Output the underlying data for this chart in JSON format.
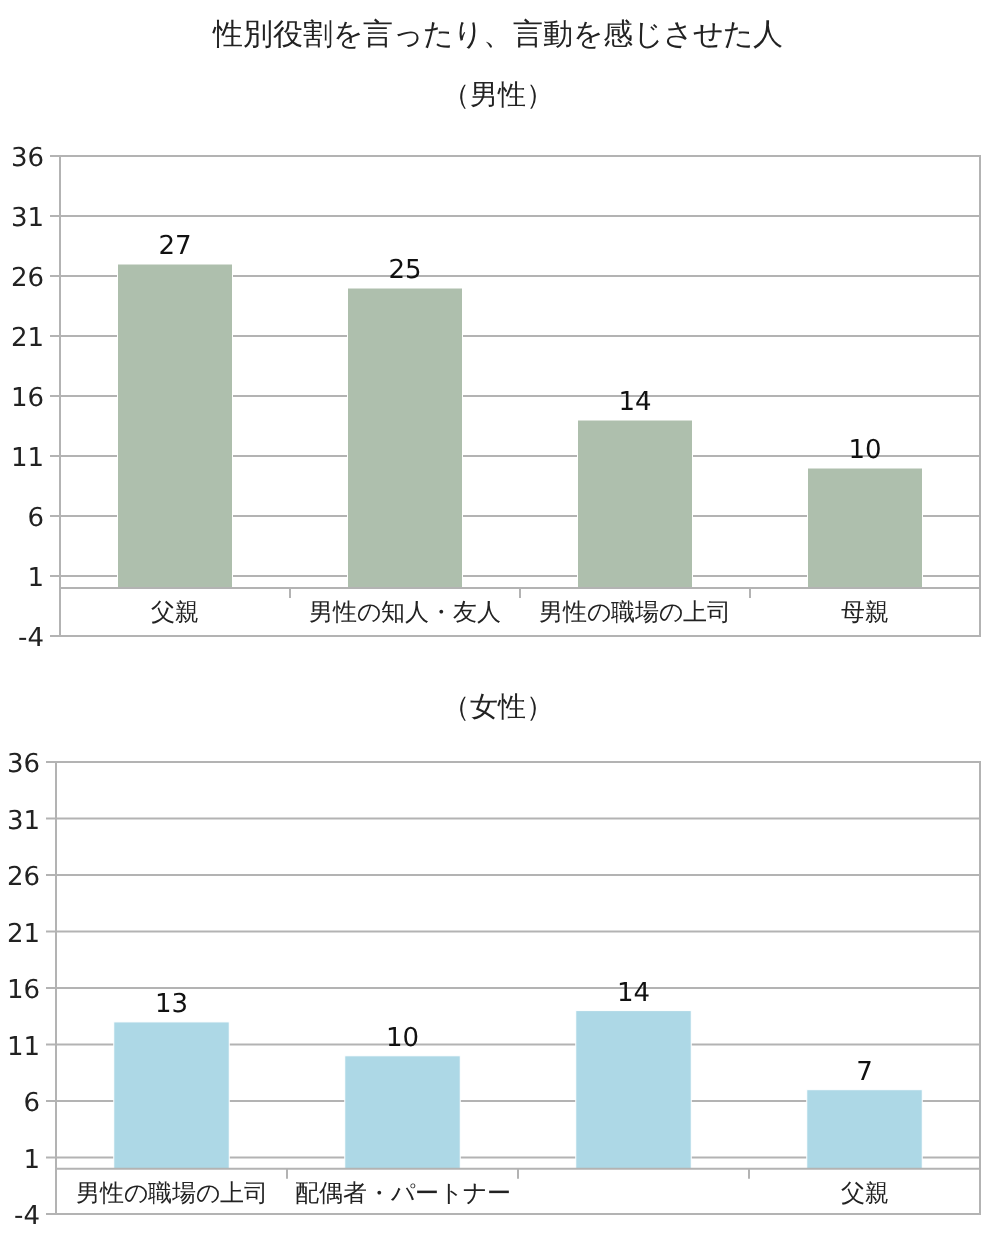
{
  "chart_data": [
    {
      "type": "bar",
      "title": "性別役割を言ったり、言動を感じさせた人",
      "subtitle": "（男性）",
      "categories": [
        "父親",
        "男性の知人・友人",
        "男性の職場の上司",
        "母親"
      ],
      "values": [
        27,
        25,
        14,
        10
      ],
      "color": "#aebfad",
      "ylim": [
        -4,
        36
      ],
      "yticks": [
        -4,
        1,
        6,
        11,
        16,
        21,
        26,
        31,
        36
      ],
      "grid": "y",
      "data_labels": true
    },
    {
      "type": "bar",
      "subtitle": "（女性）",
      "categories": [
        "男性の職場の上司",
        "配偶者・パートナー",
        null,
        "父親"
      ],
      "values": [
        13,
        10,
        14,
        7
      ],
      "color": "#add8e6",
      "ylim": [
        -4,
        36
      ],
      "yticks": [
        -4,
        1,
        6,
        11,
        16,
        21,
        26,
        31,
        36
      ],
      "grid": "y",
      "data_labels": true
    }
  ]
}
